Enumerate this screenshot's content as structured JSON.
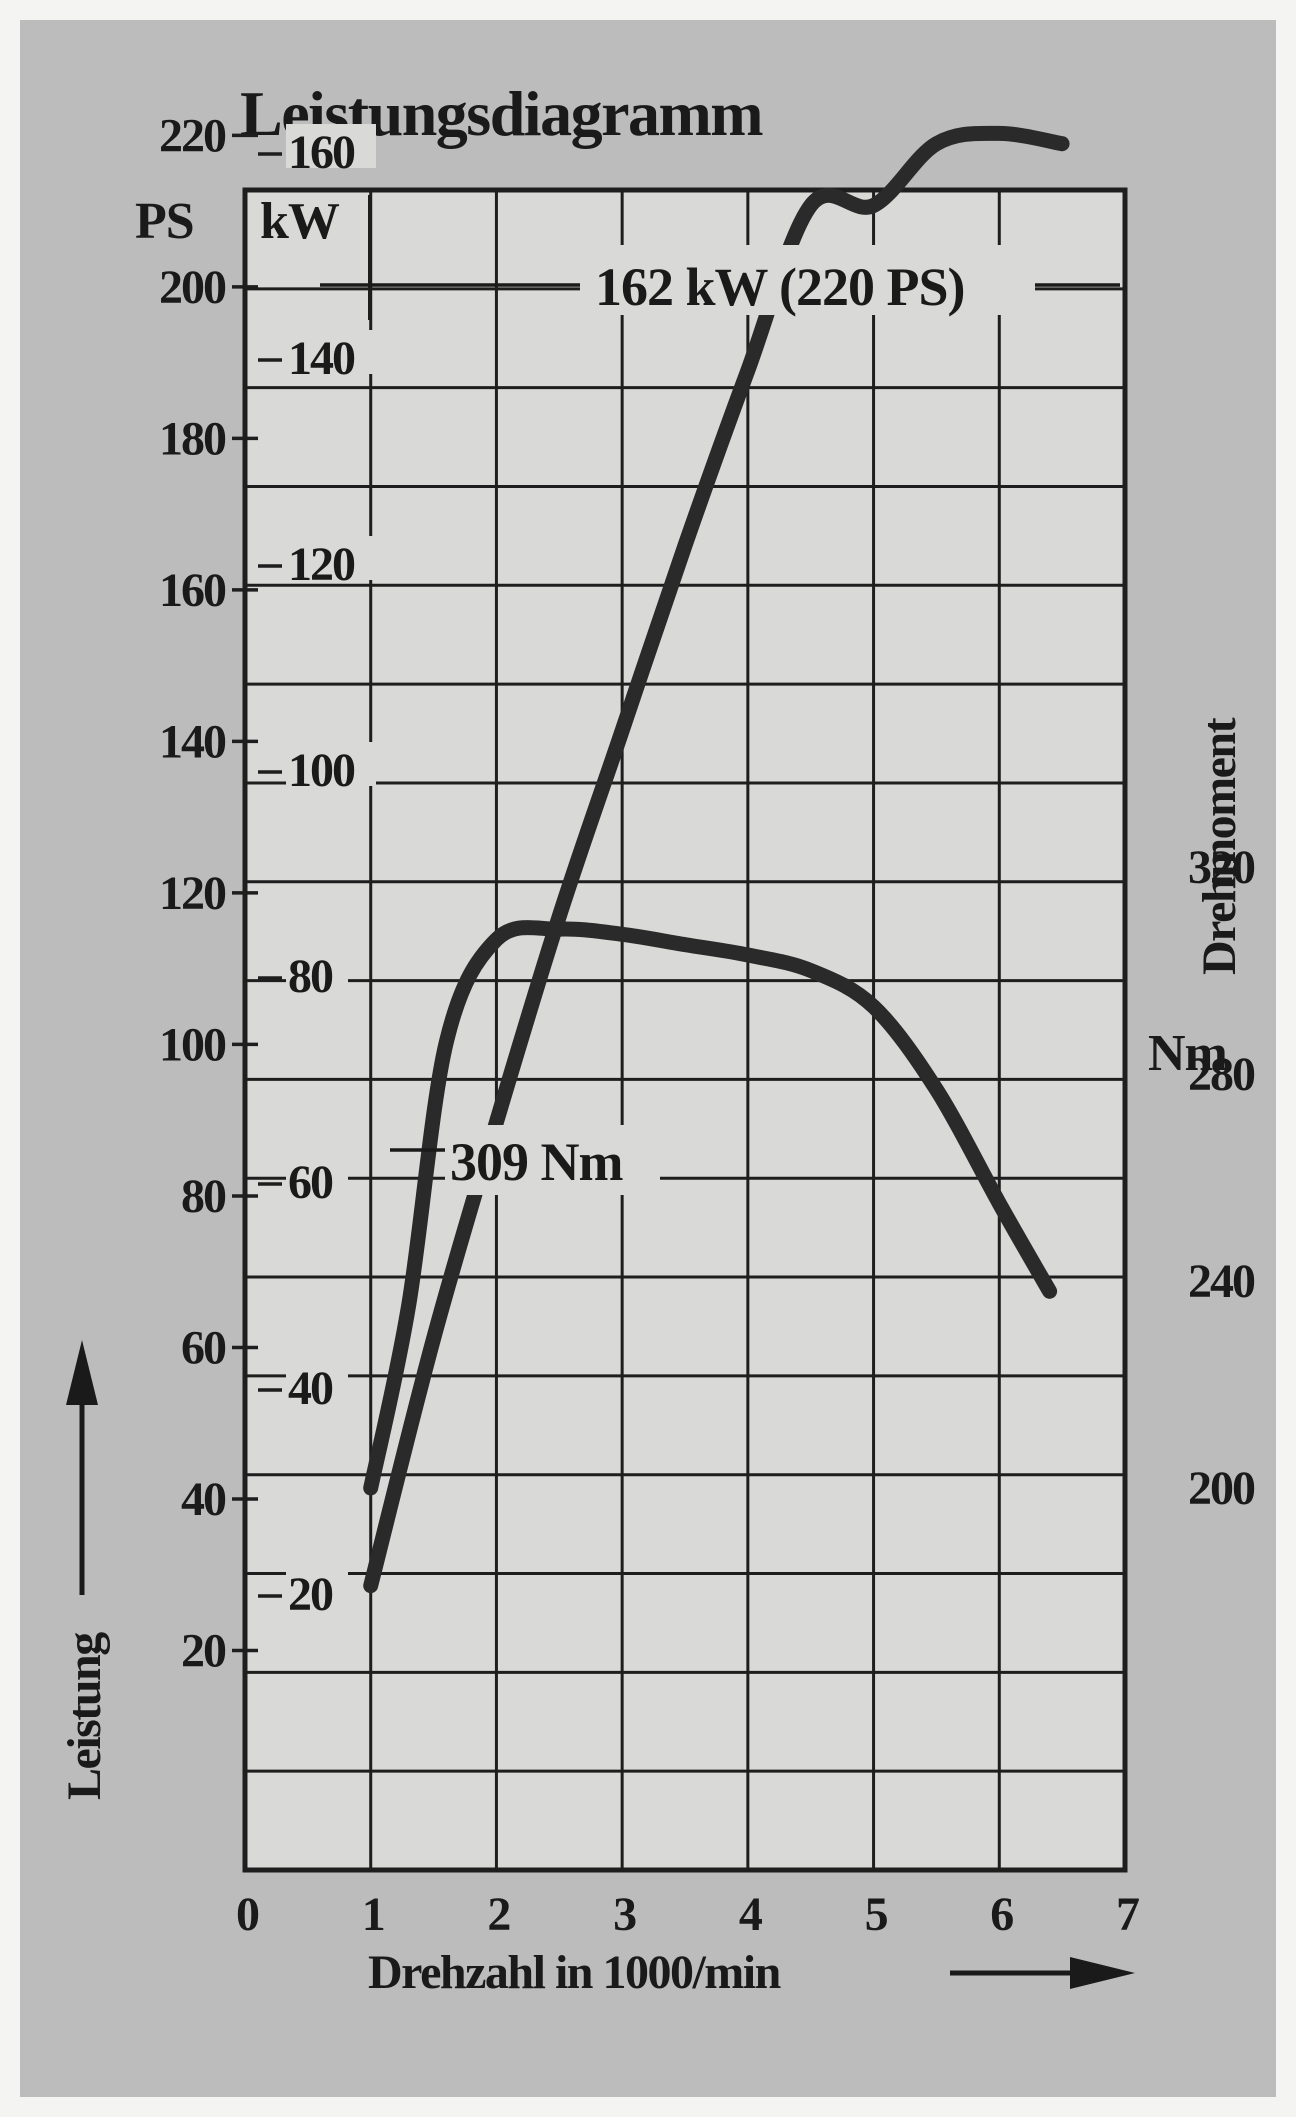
{
  "chart_data": {
    "type": "line",
    "title": "Leistungsdiagramm",
    "xlabel": "Drehzahl in 1000/min",
    "ylabel": "Leistung",
    "y2label": "Drehmoment",
    "xlim": [
      0,
      7
    ],
    "x_ticks": [
      "0",
      "1",
      "2",
      "3",
      "4",
      "5",
      "6",
      "7"
    ],
    "ps_unit": "PS",
    "kw_unit": "kW",
    "nm_unit": "Nm",
    "ps_ticks": [
      20,
      40,
      60,
      80,
      100,
      120,
      140,
      160,
      180,
      200,
      220
    ],
    "kw_ticks": [
      20,
      40,
      60,
      80,
      100,
      120,
      140,
      160
    ],
    "nm_ticks": [
      200,
      240,
      280,
      320
    ],
    "grid": true,
    "series": [
      {
        "axis": "kW",
        "x": [
          1.0,
          1.5,
          2.0,
          2.5,
          3.0,
          3.5,
          4.0,
          4.5,
          5.0,
          5.5,
          6.0,
          6.5
        ],
        "values": [
          21,
          45,
          66,
          86,
          104,
          122,
          139,
          155,
          155,
          161,
          162,
          161
        ]
      },
      {
        "axis": "Nm",
        "x": [
          1.0,
          1.3,
          1.6,
          2.0,
          2.5,
          3.0,
          3.5,
          4.0,
          4.5,
          5.0,
          5.5,
          6.0,
          6.4
        ],
        "values": [
          200,
          235,
          286,
          306,
          308,
          307,
          305,
          303,
          300,
          293,
          277,
          255,
          238
        ]
      }
    ],
    "annotations": [
      {
        "text": "162 kW (220 PS)"
      },
      {
        "text": "309 Nm"
      }
    ]
  }
}
